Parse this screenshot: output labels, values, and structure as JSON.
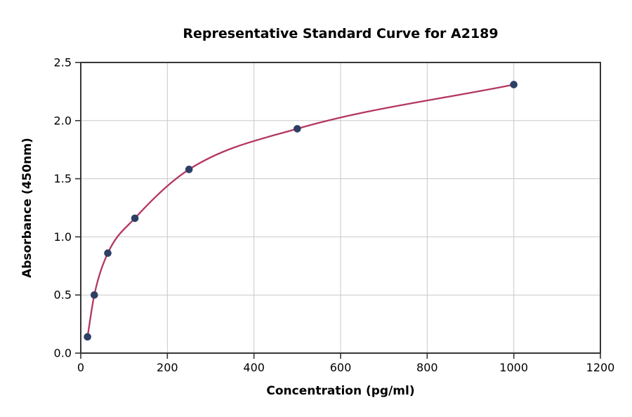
{
  "chart_data": {
    "type": "scatter+line",
    "title": "Representative Standard Curve for A2189",
    "xlabel": "Concentration (pg/ml)",
    "ylabel": "Absorbance (450nm)",
    "x": [
      15.6,
      31.25,
      62.5,
      125,
      250,
      500,
      1000
    ],
    "y": [
      0.14,
      0.5,
      0.86,
      1.16,
      1.58,
      1.93,
      2.31
    ],
    "xlim": [
      0,
      1200
    ],
    "ylim": [
      0,
      2.5
    ],
    "xtick_values": [
      0,
      200,
      400,
      600,
      800,
      1000,
      1200
    ],
    "xtick_labels": [
      "0",
      "200",
      "400",
      "600",
      "800",
      "1000",
      "1200"
    ],
    "ytick_values": [
      0,
      0.5,
      1.0,
      1.5,
      2.0,
      2.5
    ],
    "ytick_labels": [
      "0.0",
      "0.5",
      "1.0",
      "1.5",
      "2.0",
      "2.5"
    ],
    "grid": true,
    "legend": "none",
    "colors": {
      "line": "#b43760",
      "marker": "#2e3f66",
      "grid": "#c8c8c8",
      "axis": "#363636",
      "tick": "#333333",
      "background": "#ffffff"
    }
  }
}
